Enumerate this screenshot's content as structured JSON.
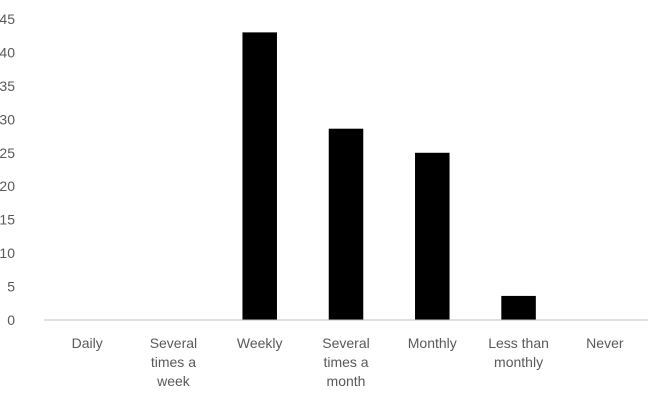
{
  "chart_data": {
    "type": "bar",
    "title": "",
    "xlabel": "",
    "ylabel": "",
    "categories": [
      [
        "Daily"
      ],
      [
        "Several",
        "times a",
        "week"
      ],
      [
        "Weekly"
      ],
      [
        "Several",
        "times a",
        "month"
      ],
      [
        "Monthly"
      ],
      [
        "Less than",
        "monthly"
      ],
      [
        "Never"
      ]
    ],
    "values": [
      0,
      0,
      43,
      28.6,
      25,
      3.6,
      0
    ],
    "ylim": [
      0,
      45
    ],
    "yticks": [
      "0",
      "5",
      "10",
      "15",
      "20",
      "25",
      "30",
      "35",
      "40",
      "45"
    ],
    "grid": false,
    "legend": "none",
    "colors": {
      "bar": "#000000",
      "axis": "#bfbfbf",
      "text": "#595959"
    }
  }
}
